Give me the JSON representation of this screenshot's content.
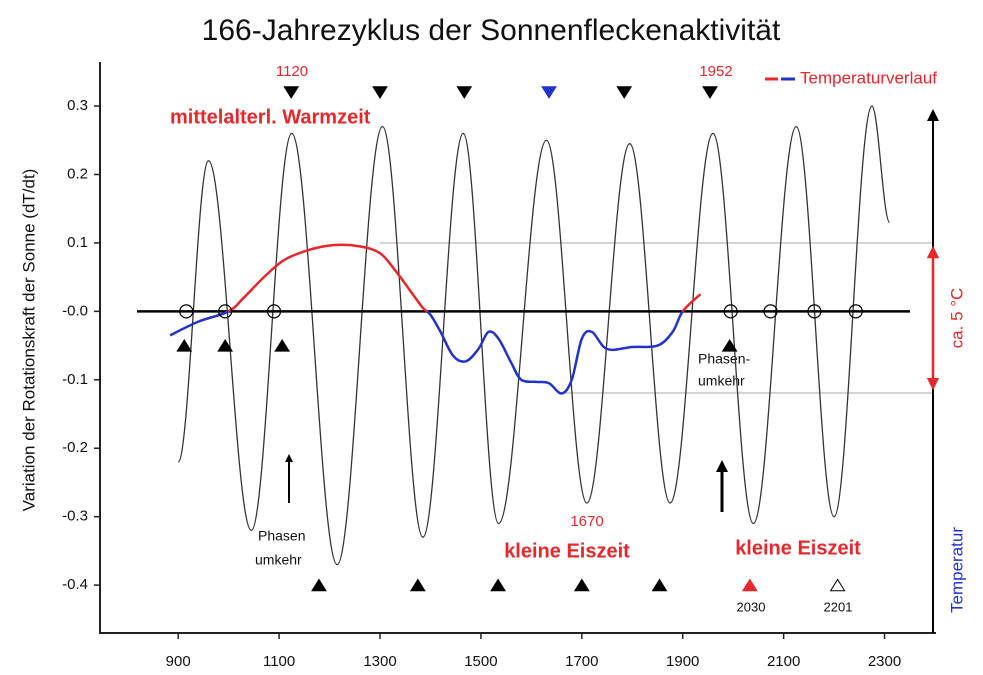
{
  "chart_data": {
    "type": "line",
    "title": "166-Jahrezyklus der Sonnenfleckenaktivität",
    "y_label": "Variation der Rotationskraft der Sonne (dT/dt)",
    "xlim": [
      745,
      2400
    ],
    "xticks": [
      900,
      1100,
      1300,
      1500,
      1700,
      1900,
      2100,
      2300
    ],
    "ylim": [
      -0.47,
      0.36
    ],
    "yticks": [
      0.3,
      0.2,
      0.1,
      {
        "value": 0,
        "label": "-0.0"
      },
      -0.1,
      -0.2,
      -0.3,
      -0.4
    ],
    "series": [
      {
        "color": "#333333",
        "x": [
          900,
          960,
          1045,
          1125,
          1215,
          1305,
          1385,
          1465,
          1535,
          1630,
          1710,
          1795,
          1875,
          1960,
          2040,
          2125,
          2200,
          2275,
          2310
        ],
        "values": [
          -0.22,
          0.22,
          -0.32,
          0.26,
          -0.37,
          0.27,
          -0.33,
          0.26,
          -0.31,
          0.25,
          -0.28,
          0.245,
          -0.28,
          0.26,
          -0.31,
          0.27,
          -0.3,
          0.3,
          0.13
        ]
      },
      {
        "name": "Temperaturverlauf",
        "colors": [
          "#e8262b",
          "#2233cc"
        ],
        "x": [
          884,
          940,
          1000,
          1030,
          1070,
          1110,
          1160,
          1210,
          1260,
          1300,
          1330,
          1360,
          1385,
          1400,
          1420,
          1445,
          1470,
          1495,
          1515,
          1535,
          1560,
          1580,
          1610,
          1635,
          1660,
          1680,
          1700,
          1720,
          1750,
          1800,
          1850,
          1880,
          1900,
          1935
        ],
        "values": [
          -0.035,
          -0.015,
          0,
          0.02,
          0.05,
          0.075,
          0.09,
          0.097,
          0.095,
          0.085,
          0.06,
          0.03,
          0.005,
          -0.005,
          -0.03,
          -0.065,
          -0.073,
          -0.055,
          -0.03,
          -0.04,
          -0.075,
          -0.1,
          -0.103,
          -0.105,
          -0.12,
          -0.1,
          -0.04,
          -0.03,
          -0.055,
          -0.052,
          -0.05,
          -0.03,
          0,
          0.025
        ]
      }
    ],
    "markers": [
      {
        "shape": "down",
        "x": [
          1124,
          1300,
          1467,
          1635,
          1784,
          1954
        ],
        "values": [
          0.32,
          0.32,
          0.32,
          0.32,
          0.32,
          0.32
        ],
        "colors": [
          "#000000",
          "#000000",
          "#000000",
          "#2233cc",
          "#000000",
          "#000000"
        ]
      },
      {
        "shape": "up",
        "x": [
          912,
          993,
          1106,
          1993
        ],
        "values": [
          -0.05,
          -0.05,
          -0.05,
          -0.05
        ],
        "colors": [
          "#000000",
          "#000000",
          "#000000",
          "#000000"
        ]
      },
      {
        "shape": "up",
        "x": [
          1179,
          1375,
          1534,
          1700,
          1854,
          2033,
          2207
        ],
        "values": [
          -0.4,
          -0.4,
          -0.4,
          -0.4,
          -0.4,
          -0.4,
          -0.4
        ],
        "colors": [
          "#000000",
          "#000000",
          "#000000",
          "#000000",
          "#000000",
          "#e8262b",
          "none"
        ]
      },
      {
        "shape": "circle",
        "x": [
          916,
          993,
          1090,
          1995,
          2074,
          2161,
          2243
        ],
        "values": [
          0,
          0,
          0,
          0,
          0,
          0,
          0
        ],
        "colors": [
          "none",
          "none",
          "none",
          "none",
          "none",
          "none",
          "none"
        ]
      }
    ],
    "annotations": [
      "1120",
      "1952",
      "mittelalterl. Warmzeit",
      "Phasen",
      "umkehr",
      "Phasen-",
      "umkehr",
      "1670",
      "kleine Eiszeit",
      "kleine Eiszeit",
      "2030",
      "2201",
      "ca. 5 °C",
      "Temperatur"
    ]
  }
}
